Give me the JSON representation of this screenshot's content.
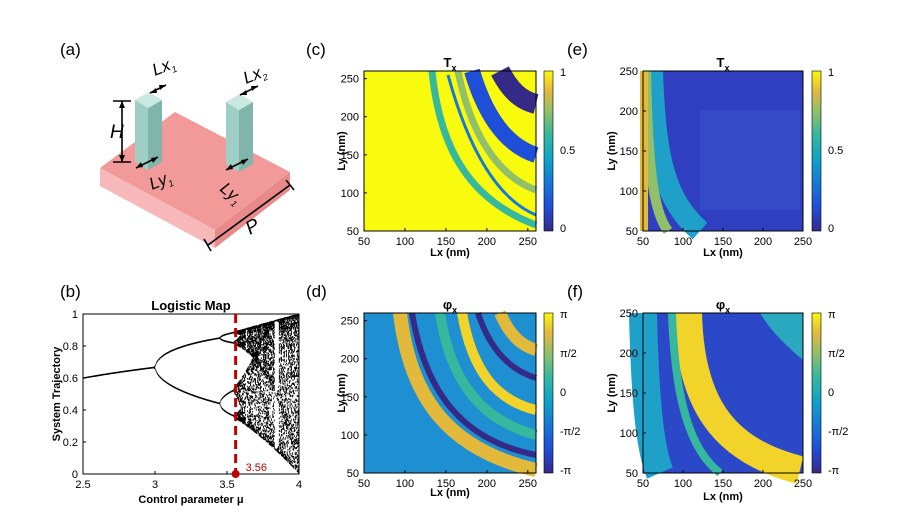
{
  "panels": {
    "a": {
      "letter": "(a)",
      "labels": {
        "lx1": "Lx",
        "lx1_sub": "1",
        "lx2": "Lx",
        "lx2_sub": "2",
        "h": "H",
        "ly1a": "Ly",
        "ly1a_sub": "1",
        "ly1b": "Ly",
        "ly1b_sub": "1",
        "p": "P"
      },
      "colors": {
        "substrate_top": "#f29a9a",
        "substrate_side": "#e88080",
        "substrate_front": "#f6b8b8",
        "pillar_front": "#9fcfc4",
        "pillar_side": "#7fb5aa",
        "pillar_top": "#c8e8e0"
      }
    },
    "b": {
      "letter": "(b)",
      "chart_data": {
        "type": "line",
        "title": "Logistic Map",
        "xlabel": "Control parameter μ",
        "ylabel": "System Trajectory",
        "xlim": [
          2.5,
          4
        ],
        "ylim": [
          0,
          1
        ],
        "xticks": [
          "2.5",
          "3",
          "3.5",
          "4"
        ],
        "yticks": [
          "0",
          "0.2",
          "0.4",
          "0.6",
          "0.8",
          "1"
        ],
        "marker": {
          "x": 3.56,
          "label": "3.56",
          "color": "#c00000"
        }
      }
    },
    "c": {
      "letter": "(c)",
      "chart_data": {
        "type": "heatmap",
        "title": "T",
        "title_sub": "x",
        "xlabel": "Lx (nm)",
        "ylabel": "Ly (nm)",
        "xlim": [
          50,
          260
        ],
        "ylim": [
          50,
          260
        ],
        "xticks": [
          "50",
          "100",
          "150",
          "200",
          "250"
        ],
        "yticks": [
          "50",
          "100",
          "150",
          "200",
          "250"
        ],
        "colorbar": {
          "ticks": [
            "1",
            "0.5",
            "0"
          ],
          "range": [
            0,
            1
          ]
        }
      }
    },
    "d": {
      "letter": "(d)",
      "chart_data": {
        "type": "heatmap",
        "title": "φ",
        "title_sub": "x",
        "xlabel": "Lx (nm)",
        "ylabel": "Ly (nm)",
        "xlim": [
          50,
          260
        ],
        "ylim": [
          50,
          260
        ],
        "xticks": [
          "50",
          "100",
          "150",
          "200",
          "250"
        ],
        "yticks": [
          "50",
          "100",
          "150",
          "200",
          "250"
        ],
        "colorbar": {
          "ticks": [
            "π",
            "π/2",
            "0",
            "-π/2",
            "-π"
          ],
          "range": [
            -3.1416,
            3.1416
          ]
        }
      }
    },
    "e": {
      "letter": "(e)",
      "chart_data": {
        "type": "heatmap",
        "title": "T",
        "title_sub": "x",
        "xlabel": "Lx (nm)",
        "ylabel": "Ly (nm)",
        "xlim": [
          50,
          250
        ],
        "ylim": [
          50,
          250
        ],
        "xticks": [
          "50",
          "100",
          "150",
          "200",
          "250"
        ],
        "yticks": [
          "50",
          "100",
          "150",
          "200",
          "250"
        ],
        "colorbar": {
          "ticks": [
            "1",
            "0.5",
            "0"
          ],
          "range": [
            0,
            1
          ]
        }
      }
    },
    "f": {
      "letter": "(f)",
      "chart_data": {
        "type": "heatmap",
        "title": "φ",
        "title_sub": "x",
        "xlabel": "Lx (nm)",
        "ylabel": "Ly (nm)",
        "xlim": [
          50,
          250
        ],
        "ylim": [
          50,
          250
        ],
        "xticks": [
          "50",
          "100",
          "150",
          "200",
          "250"
        ],
        "yticks": [
          "50",
          "100",
          "150",
          "200",
          "250"
        ],
        "colorbar": {
          "ticks": [
            "π",
            "π/2",
            "0",
            "-π/2",
            "-π"
          ],
          "range": [
            -3.1416,
            3.1416
          ]
        }
      }
    }
  }
}
